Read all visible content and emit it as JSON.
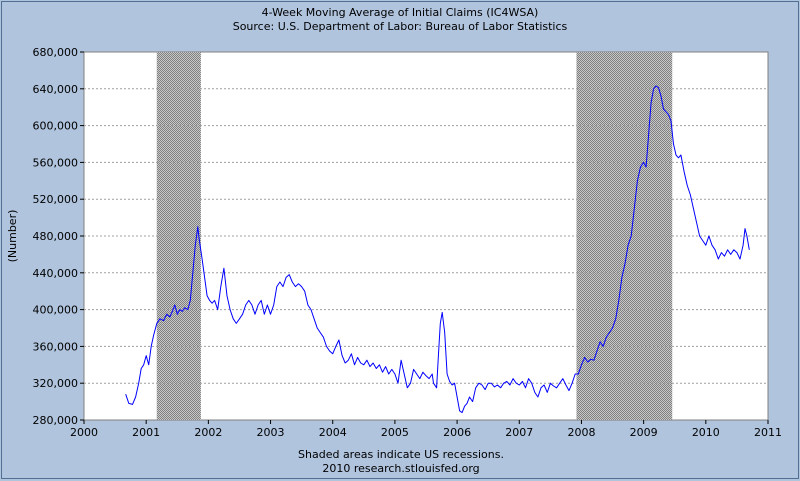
{
  "chart_data": {
    "type": "line",
    "title": "4-Week Moving Average of Initial Claims (IC4WSA)",
    "subtitle": "Source: U.S. Department of Labor: Bureau of Labor Statistics",
    "ylabel": "(Number)",
    "xlim": [
      2000,
      2011
    ],
    "ylim": [
      280000,
      680000
    ],
    "x_ticks": [
      "2000",
      "2001",
      "2002",
      "2003",
      "2004",
      "2005",
      "2006",
      "2007",
      "2008",
      "2009",
      "2010",
      "2011"
    ],
    "y_ticks": [
      "280,000",
      "320,000",
      "360,000",
      "400,000",
      "440,000",
      "480,000",
      "520,000",
      "560,000",
      "600,000",
      "640,000",
      "680,000"
    ],
    "grid": true,
    "recessions": [
      [
        2001.17,
        2001.88
      ],
      [
        2007.92,
        2009.46
      ]
    ],
    "footnote": "Shaded areas indicate US recessions.",
    "credit": "2010 research.stlouisfed.org",
    "series": [
      {
        "color": "#0000FF",
        "x": [
          2000.67,
          2000.72,
          2000.78,
          2000.83,
          2000.88,
          2000.92,
          2000.96,
          2001.0,
          2001.04,
          2001.08,
          2001.12,
          2001.17,
          2001.22,
          2001.28,
          2001.33,
          2001.38,
          2001.42,
          2001.46,
          2001.5,
          2001.54,
          2001.58,
          2001.62,
          2001.67,
          2001.71,
          2001.75,
          2001.79,
          2001.83,
          2001.85,
          2001.9,
          2001.94,
          2001.98,
          2002.02,
          2002.06,
          2002.1,
          2002.15,
          2002.2,
          2002.25,
          2002.3,
          2002.35,
          2002.4,
          2002.45,
          2002.5,
          2002.55,
          2002.6,
          2002.65,
          2002.7,
          2002.75,
          2002.8,
          2002.85,
          2002.9,
          2002.95,
          2003.0,
          2003.05,
          2003.1,
          2003.15,
          2003.2,
          2003.25,
          2003.3,
          2003.35,
          2003.4,
          2003.45,
          2003.5,
          2003.55,
          2003.6,
          2003.65,
          2003.7,
          2003.75,
          2003.8,
          2003.85,
          2003.9,
          2003.95,
          2004.0,
          2004.05,
          2004.1,
          2004.15,
          2004.2,
          2004.25,
          2004.3,
          2004.35,
          2004.4,
          2004.45,
          2004.5,
          2004.55,
          2004.6,
          2004.65,
          2004.7,
          2004.75,
          2004.8,
          2004.85,
          2004.9,
          2004.95,
          2005.0,
          2005.05,
          2005.1,
          2005.15,
          2005.2,
          2005.25,
          2005.3,
          2005.35,
          2005.4,
          2005.45,
          2005.5,
          2005.55,
          2005.6,
          2005.62,
          2005.67,
          2005.7,
          2005.73,
          2005.76,
          2005.8,
          2005.84,
          2005.88,
          2005.92,
          2005.96,
          2006.0,
          2006.04,
          2006.08,
          2006.12,
          2006.16,
          2006.2,
          2006.25,
          2006.3,
          2006.35,
          2006.4,
          2006.45,
          2006.5,
          2006.55,
          2006.6,
          2006.65,
          2006.7,
          2006.75,
          2006.8,
          2006.85,
          2006.9,
          2006.95,
          2007.0,
          2007.05,
          2007.1,
          2007.15,
          2007.2,
          2007.25,
          2007.3,
          2007.35,
          2007.4,
          2007.45,
          2007.5,
          2007.55,
          2007.6,
          2007.65,
          2007.7,
          2007.75,
          2007.8,
          2007.85,
          2007.9,
          2007.95,
          2008.0,
          2008.05,
          2008.1,
          2008.15,
          2008.2,
          2008.25,
          2008.3,
          2008.35,
          2008.4,
          2008.45,
          2008.5,
          2008.55,
          2008.6,
          2008.65,
          2008.7,
          2008.75,
          2008.8,
          2008.85,
          2008.9,
          2008.95,
          2009.0,
          2009.04,
          2009.08,
          2009.12,
          2009.16,
          2009.2,
          2009.24,
          2009.28,
          2009.32,
          2009.36,
          2009.4,
          2009.44,
          2009.48,
          2009.52,
          2009.56,
          2009.6,
          2009.65,
          2009.7,
          2009.75,
          2009.8,
          2009.85,
          2009.9,
          2009.95,
          2010.0,
          2010.05,
          2010.1,
          2010.15,
          2010.2,
          2010.25,
          2010.3,
          2010.35,
          2010.4,
          2010.45,
          2010.5,
          2010.55,
          2010.6,
          2010.63,
          2010.66,
          2010.7
        ],
        "y": [
          308000,
          298000,
          297000,
          305000,
          320000,
          336000,
          340000,
          350000,
          340000,
          360000,
          372000,
          385000,
          390000,
          388000,
          395000,
          392000,
          398000,
          405000,
          395000,
          400000,
          398000,
          402000,
          400000,
          410000,
          440000,
          470000,
          490000,
          478000,
          455000,
          435000,
          415000,
          410000,
          407000,
          410000,
          400000,
          425000,
          445000,
          415000,
          400000,
          390000,
          385000,
          390000,
          395000,
          405000,
          410000,
          405000,
          395000,
          405000,
          410000,
          395000,
          405000,
          395000,
          405000,
          425000,
          430000,
          425000,
          435000,
          438000,
          430000,
          425000,
          428000,
          425000,
          420000,
          405000,
          400000,
          390000,
          380000,
          375000,
          370000,
          360000,
          355000,
          352000,
          360000,
          367000,
          350000,
          342000,
          345000,
          352000,
          340000,
          348000,
          342000,
          340000,
          345000,
          338000,
          342000,
          336000,
          340000,
          332000,
          338000,
          330000,
          335000,
          330000,
          320000,
          345000,
          330000,
          315000,
          320000,
          335000,
          330000,
          325000,
          332000,
          328000,
          325000,
          330000,
          320000,
          315000,
          350000,
          385000,
          397000,
          375000,
          330000,
          322000,
          318000,
          320000,
          305000,
          290000,
          288000,
          295000,
          298000,
          305000,
          300000,
          315000,
          320000,
          318000,
          313000,
          320000,
          320000,
          316000,
          318000,
          315000,
          320000,
          322000,
          318000,
          325000,
          320000,
          318000,
          322000,
          315000,
          325000,
          320000,
          310000,
          305000,
          315000,
          318000,
          310000,
          320000,
          317000,
          315000,
          320000,
          325000,
          318000,
          312000,
          320000,
          330000,
          330000,
          340000,
          348000,
          343000,
          346000,
          345000,
          355000,
          365000,
          360000,
          370000,
          375000,
          380000,
          390000,
          410000,
          435000,
          450000,
          470000,
          480000,
          510000,
          540000,
          555000,
          560000,
          555000,
          590000,
          625000,
          640000,
          643000,
          641000,
          632000,
          618000,
          615000,
          612000,
          605000,
          580000,
          568000,
          565000,
          568000,
          550000,
          535000,
          525000,
          510000,
          495000,
          480000,
          475000,
          470000,
          480000,
          470000,
          465000,
          455000,
          462000,
          458000,
          465000,
          460000,
          465000,
          462000,
          455000,
          470000,
          488000,
          480000,
          465000
        ]
      }
    ]
  }
}
